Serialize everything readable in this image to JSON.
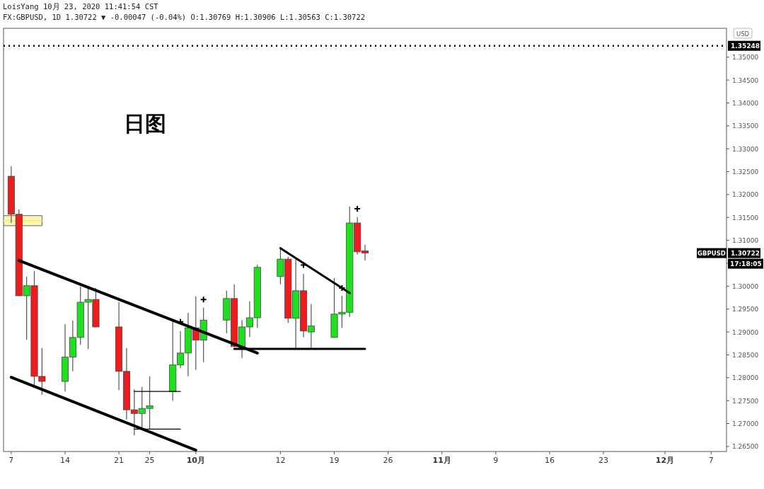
{
  "chart_data": {
    "type": "candlestick",
    "title": "日图",
    "annotations": [
      "LoisYang 10月 23, 2020 11:41:54 CST",
      "FX:GBPUSD, 1D 1.30722 ▼ -0.00047 (-0.04%) O:1.30769 H:1.30906 L:1.30563 C:1.30722",
      "USD",
      "GBPUSD",
      "1.30722",
      "17:18:05"
    ],
    "x": [
      "2020-09-07",
      "2020-09-08",
      "2020-09-09",
      "2020-09-10",
      "2020-09-11",
      "2020-09-14",
      "2020-09-15",
      "2020-09-16",
      "2020-09-17",
      "2020-09-18",
      "2020-09-21",
      "2020-09-22",
      "2020-09-23",
      "2020-09-24",
      "2020-09-25",
      "2020-09-28",
      "2020-09-29",
      "2020-09-30",
      "2020-10-01",
      "2020-10-02",
      "2020-10-05",
      "2020-10-06",
      "2020-10-07",
      "2020-10-08",
      "2020-10-09",
      "2020-10-12",
      "2020-10-13",
      "2020-10-14",
      "2020-10-15",
      "2020-10-16",
      "2020-10-19",
      "2020-10-20",
      "2020-10-21",
      "2020-10-22",
      "2020-10-23"
    ],
    "ohlc": [
      [
        1.324,
        1.3262,
        1.3138,
        1.3157
      ],
      [
        1.3157,
        1.3168,
        1.2978,
        1.2979
      ],
      [
        1.2979,
        1.3021,
        1.2883,
        1.3001
      ],
      [
        1.3001,
        1.3033,
        1.2778,
        1.2803
      ],
      [
        1.2803,
        1.2865,
        1.2763,
        1.2792
      ],
      [
        1.2792,
        1.2917,
        1.277,
        1.2845
      ],
      [
        1.2845,
        1.2925,
        1.2814,
        1.2888
      ],
      [
        1.2888,
        1.2999,
        1.2872,
        1.2965
      ],
      [
        1.2965,
        1.2996,
        1.2863,
        1.2971
      ],
      [
        1.2971,
        1.2996,
        1.291,
        1.2911
      ],
      [
        1.2911,
        1.2965,
        1.2773,
        1.2814
      ],
      [
        1.2814,
        1.2865,
        1.2709,
        1.273
      ],
      [
        1.273,
        1.2775,
        1.2674,
        1.2722
      ],
      [
        1.2722,
        1.278,
        1.2687,
        1.2733
      ],
      [
        1.2733,
        1.2803,
        1.2687,
        1.2739
      ],
      [
        1.277,
        1.2928,
        1.275,
        1.2828
      ],
      [
        1.2828,
        1.2902,
        1.2821,
        1.2854
      ],
      [
        1.2854,
        1.2942,
        1.2803,
        1.2909
      ],
      [
        1.2909,
        1.2978,
        1.2817,
        1.2882
      ],
      [
        1.2882,
        1.2953,
        1.2834,
        1.2926
      ],
      [
        1.2926,
        1.299,
        1.2897,
        1.2973
      ],
      [
        1.2973,
        1.3004,
        1.2867,
        1.2868
      ],
      [
        1.2866,
        1.2926,
        1.2843,
        1.2911
      ],
      [
        1.2911,
        1.2967,
        1.2889,
        1.2931
      ],
      [
        1.2931,
        1.3047,
        1.2909,
        1.3041
      ],
      [
        1.3021,
        1.3083,
        1.3004,
        1.3059
      ],
      [
        1.3059,
        1.3064,
        1.292,
        1.293
      ],
      [
        1.293,
        1.3058,
        1.2863,
        1.299
      ],
      [
        1.299,
        1.3027,
        1.2888,
        1.2902
      ],
      [
        1.29,
        1.2961,
        1.2863,
        1.2913
      ],
      [
        1.2888,
        1.3018,
        1.2888,
        1.2939
      ],
      [
        1.2939,
        1.2979,
        1.2909,
        1.2943
      ],
      [
        1.2943,
        1.3174,
        1.2933,
        1.3138
      ],
      [
        1.3138,
        1.3151,
        1.3069,
        1.3075
      ],
      [
        1.30769,
        1.30906,
        1.30563,
        1.30722
      ]
    ],
    "colors": [
      "#ee1c1c",
      "#ee1c1c",
      "#1fe01f",
      "#ee1c1c",
      "#ee1c1c",
      "#1fe01f",
      "#1fe01f",
      "#1fe01f",
      "#1fe01f",
      "#ee1c1c",
      "#ee1c1c",
      "#ee1c1c",
      "#ee1c1c",
      "#1fe01f",
      "#1fe01f",
      "#1fe01f",
      "#1fe01f",
      "#1fe01f",
      "#ee1c1c",
      "#1fe01f",
      "#1fe01f",
      "#ee1c1c",
      "#1fe01f",
      "#1fe01f",
      "#1fe01f",
      "#1fe01f",
      "#ee1c1c",
      "#1fe01f",
      "#ee1c1c",
      "#1fe01f",
      "#1fe01f",
      "#1fe01f",
      "#1fe01f",
      "#ee1c1c",
      "#ee1c1c"
    ],
    "series": [
      {
        "type": "line",
        "color": "#f5f07a",
        "x": [
          "2020-09-06",
          "2020-09-11"
        ],
        "values": [
          1.3143,
          1.3143
        ],
        "lower": [
          1.3132,
          1.3132
        ],
        "upper": [
          1.3154,
          1.3154
        ]
      },
      {
        "type": "line",
        "color": "#000000",
        "x": [
          "2020-09-08",
          "2020-10-09"
        ],
        "values": [
          1.3056,
          1.2854
        ]
      },
      {
        "type": "line",
        "color": "#000000",
        "x": [
          "2020-09-07",
          "2020-10-01"
        ],
        "values": [
          1.2801,
          1.2642
        ]
      },
      {
        "type": "line",
        "color": "#000000",
        "x": [
          "2020-10-12",
          "2020-10-21"
        ],
        "values": [
          1.3083,
          1.2985
        ]
      },
      {
        "type": "line",
        "color": "#000000",
        "x": [
          "2020-10-06",
          "2020-10-23"
        ],
        "values": [
          1.2863,
          1.2863
        ]
      },
      {
        "type": "line",
        "color": "#000000",
        "x": [
          "2020-09-23",
          "2020-09-29"
        ],
        "values": [
          1.277,
          1.277
        ]
      },
      {
        "type": "line",
        "color": "#000000",
        "x": [
          "2020-09-23",
          "2020-09-29"
        ],
        "values": [
          1.2688,
          1.2688
        ]
      },
      {
        "type": "scatter",
        "color": "#000000",
        "marker": "cross",
        "x": [
          "2020-09-29",
          "2020-10-02",
          "2020-10-15",
          "2020-10-20",
          "2020-10-22"
        ],
        "values": [
          1.2922,
          1.2971,
          1.3046,
          1.2996,
          1.3169
        ]
      }
    ],
    "ref_lines": [
      {
        "axis": "y",
        "value": 1.35248,
        "label": "1.35248",
        "line_style": "dotted",
        "color": "#000000"
      }
    ],
    "xlim": [
      "2020-09-06",
      "2020-12-09"
    ],
    "xticks": [
      {
        "value": "2020-09-07",
        "label": "7"
      },
      {
        "value": "2020-09-14",
        "label": "14"
      },
      {
        "value": "2020-09-21",
        "label": "21"
      },
      {
        "value": "2020-09-25",
        "label": "25"
      },
      {
        "value": "2020-10-01",
        "label": "10月"
      },
      {
        "value": "2020-10-12",
        "label": "12"
      },
      {
        "value": "2020-10-19",
        "label": "19"
      },
      {
        "value": "2020-10-26",
        "label": "26"
      },
      {
        "value": "2020-11-02",
        "label": "11月"
      },
      {
        "value": "2020-11-09",
        "label": "9"
      },
      {
        "value": "2020-11-16",
        "label": "16"
      },
      {
        "value": "2020-11-23",
        "label": "23"
      },
      {
        "value": "2020-12-01",
        "label": "12月"
      },
      {
        "value": "2020-12-07",
        "label": "7"
      }
    ],
    "ylim": [
      1.2639,
      1.3563
    ],
    "yticks": [
      {
        "value": 1.265,
        "label": "1.26500"
      },
      {
        "value": 1.27,
        "label": "1.27000"
      },
      {
        "value": 1.275,
        "label": "1.27500"
      },
      {
        "value": 1.28,
        "label": "1.28000"
      },
      {
        "value": 1.285,
        "label": "1.28500"
      },
      {
        "value": 1.29,
        "label": "1.29000"
      },
      {
        "value": 1.295,
        "label": "1.29500"
      },
      {
        "value": 1.3,
        "label": "1.30000"
      },
      {
        "value": 1.305,
        "label": null
      },
      {
        "value": 1.31,
        "label": "1.31000"
      },
      {
        "value": 1.315,
        "label": "1.31500"
      },
      {
        "value": 1.32,
        "label": "1.32000"
      },
      {
        "value": 1.325,
        "label": "1.32500"
      },
      {
        "value": 1.33,
        "label": "1.33000"
      },
      {
        "value": 1.335,
        "label": "1.33500"
      },
      {
        "value": 1.34,
        "label": "1.34000"
      },
      {
        "value": 1.345,
        "label": "1.34500"
      },
      {
        "value": 1.35,
        "label": "1.35000"
      }
    ]
  }
}
